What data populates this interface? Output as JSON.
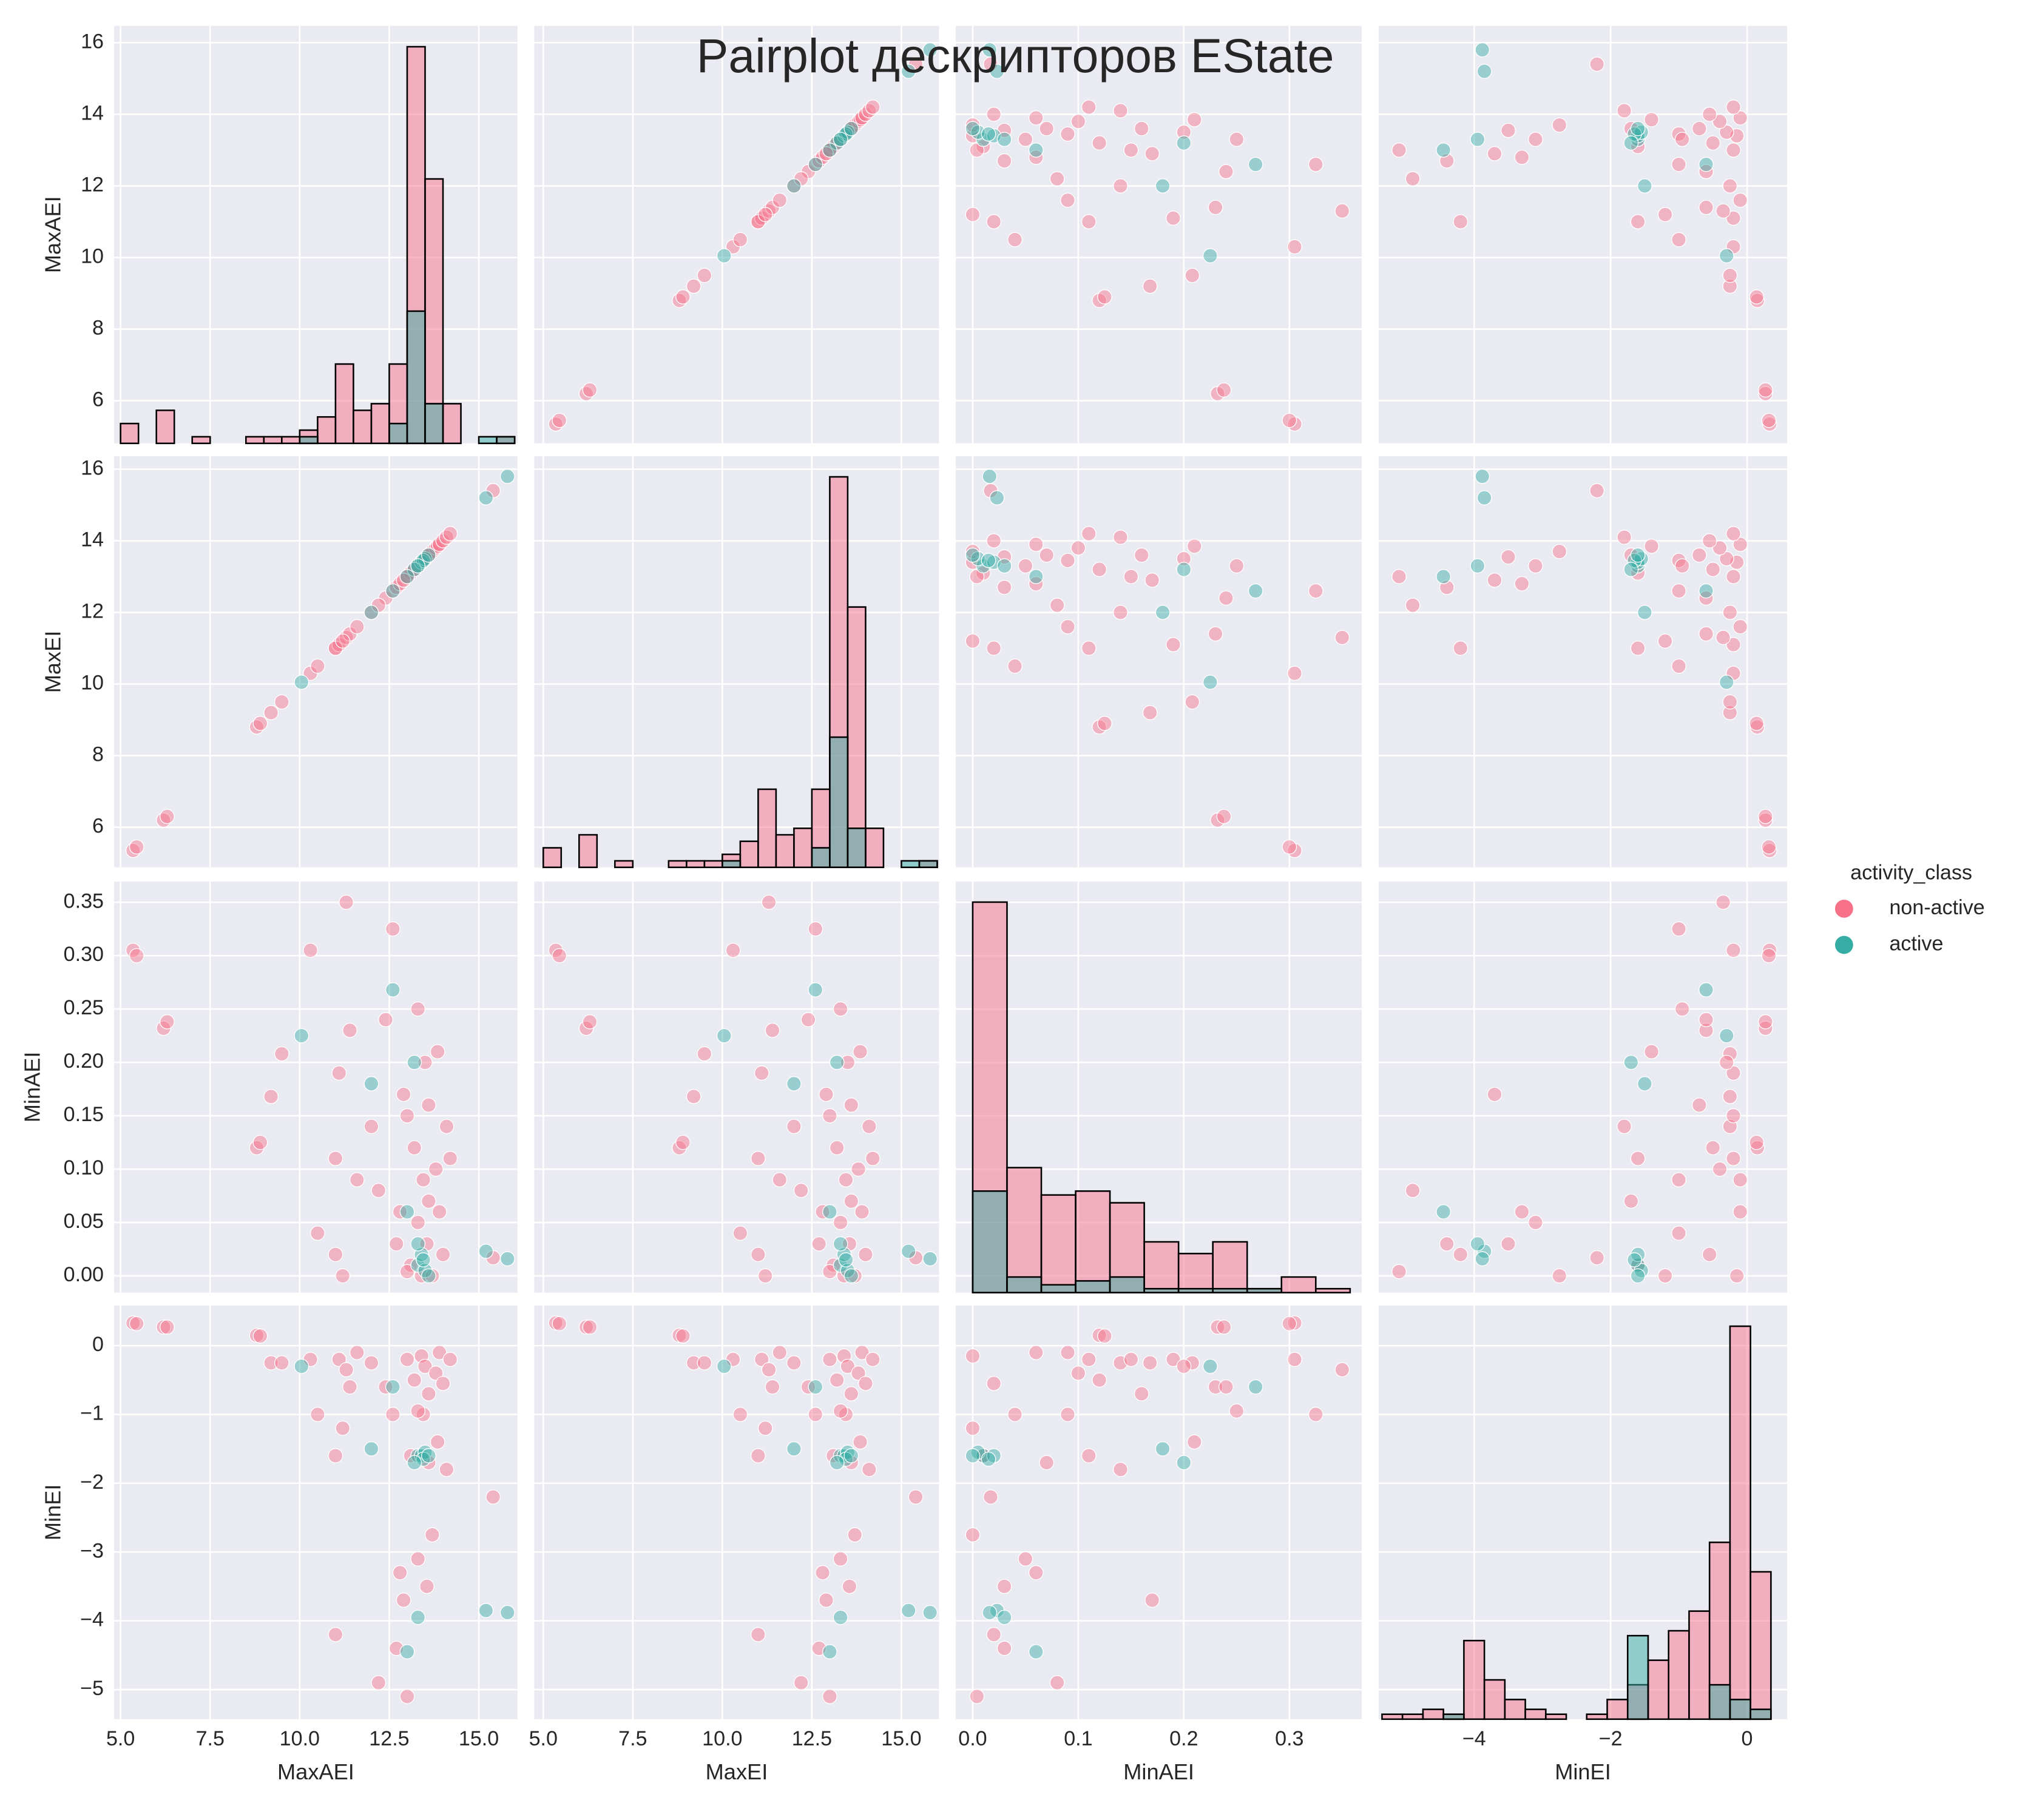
{
  "chart_data": {
    "type": "pairplot",
    "title": "Pairplot дескрипторов EState",
    "variables": [
      "MaxAEI",
      "MaxEI",
      "MinAEI",
      "MinEI"
    ],
    "grid": true,
    "legend_title": "activity_class",
    "legend_position": "right",
    "axes": [
      {
        "xlim": [
          4.82,
          16.08
        ],
        "ylim": [
          4.81,
          16.47
        ],
        "xticks": [
          {
            "value": 5,
            "label": "5.0"
          },
          7.5,
          {
            "value": 10,
            "label": "10.0"
          },
          12.5,
          {
            "value": 15,
            "label": "15.0"
          }
        ],
        "yticks": [
          6,
          8,
          10,
          12,
          14,
          16
        ]
      },
      {
        "xlim": [
          4.75,
          16.05
        ],
        "ylim": [
          4.88,
          16.36
        ],
        "xticks": [
          {
            "value": 5,
            "label": "5.0"
          },
          7.5,
          {
            "value": 10,
            "label": "10.0"
          },
          12.5,
          {
            "value": 15,
            "label": "15.0"
          }
        ],
        "yticks": [
          6,
          8,
          10,
          12,
          14,
          16
        ]
      },
      {
        "xlim": [
          -0.016,
          0.3686
        ],
        "ylim": [
          -0.0157,
          0.3694
        ],
        "xticks": [
          {
            "value": 0,
            "label": "0.0"
          },
          0.1,
          0.2,
          0.3
        ],
        "yticks": [
          {
            "value": 0,
            "label": "0.00"
          },
          0.05,
          {
            "value": 0.1,
            "label": "0.10"
          },
          0.15,
          {
            "value": 0.2,
            "label": "0.20"
          },
          0.25,
          {
            "value": 0.3,
            "label": "0.30"
          },
          0.35
        ]
      },
      {
        "xlim": [
          -5.4,
          0.588
        ],
        "ylim": [
          -5.43,
          0.583
        ],
        "xticks": [
          {
            "value": -4,
            "label": "−4"
          },
          {
            "value": -2,
            "label": "−2"
          },
          0
        ],
        "yticks": [
          {
            "value": -5,
            "label": "−5"
          },
          {
            "value": -4,
            "label": "−4"
          },
          {
            "value": -3,
            "label": "−3"
          },
          {
            "value": -2,
            "label": "−2"
          },
          {
            "value": -1,
            "label": "−1"
          },
          0
        ]
      }
    ],
    "series": [
      {
        "name": "non-active",
        "color": "#f77189",
        "values": [
          [
            5.35,
            5.35,
            0.305,
            0.33
          ],
          [
            5.45,
            5.45,
            0.3,
            0.32
          ],
          [
            6.2,
            6.2,
            0.232,
            0.27
          ],
          [
            6.3,
            6.3,
            0.238,
            0.27
          ],
          [
            8.8,
            8.8,
            0.12,
            0.15
          ],
          [
            8.9,
            8.9,
            0.125,
            0.14
          ],
          [
            9.2,
            9.2,
            0.168,
            -0.25
          ],
          [
            9.5,
            9.5,
            0.208,
            -0.25
          ],
          [
            10.3,
            10.3,
            0.305,
            -0.2
          ],
          [
            10.5,
            10.5,
            0.04,
            -1.0
          ],
          [
            11.0,
            11.0,
            0.11,
            -1.6
          ],
          [
            11.1,
            11.1,
            0.19,
            -0.2
          ],
          [
            11.3,
            11.3,
            0.35,
            -0.35
          ],
          [
            11.4,
            11.4,
            0.23,
            -0.6
          ],
          [
            11.0,
            11.0,
            0.02,
            -4.2
          ],
          [
            11.6,
            11.6,
            0.09,
            -0.1
          ],
          [
            12.0,
            12.0,
            0.14,
            -0.25
          ],
          [
            12.4,
            12.4,
            0.24,
            -0.6
          ],
          [
            12.6,
            12.6,
            0.325,
            -1.0
          ],
          [
            12.7,
            12.7,
            0.03,
            -4.4
          ],
          [
            12.8,
            12.8,
            0.06,
            -3.3
          ],
          [
            13.0,
            13.0,
            0.15,
            -0.2
          ],
          [
            13.1,
            13.1,
            0.01,
            -1.6
          ],
          [
            13.2,
            13.2,
            0.12,
            -0.5
          ],
          [
            13.3,
            13.3,
            0.05,
            -3.1
          ],
          [
            13.4,
            13.4,
            0.0,
            -0.15
          ],
          [
            13.45,
            13.45,
            0.09,
            -1.0
          ],
          [
            13.5,
            13.5,
            0.2,
            -0.3
          ],
          [
            13.55,
            13.55,
            0.03,
            -3.5
          ],
          [
            13.6,
            13.6,
            0.16,
            -0.7
          ],
          [
            13.7,
            13.7,
            0.0,
            -2.75
          ],
          [
            13.8,
            13.8,
            0.1,
            -0.4
          ],
          [
            13.85,
            13.85,
            0.21,
            -1.4
          ],
          [
            13.9,
            13.9,
            0.06,
            -0.1
          ],
          [
            14.0,
            14.0,
            0.02,
            -0.55
          ],
          [
            14.1,
            14.1,
            0.14,
            -1.8
          ],
          [
            14.2,
            14.2,
            0.11,
            -0.2
          ],
          [
            13.0,
            13.0,
            0.004,
            -5.1
          ],
          [
            13.3,
            13.3,
            0.25,
            -0.95
          ],
          [
            12.9,
            12.9,
            0.17,
            -3.7
          ],
          [
            15.4,
            15.4,
            0.017,
            -2.2
          ],
          [
            13.6,
            13.6,
            0.07,
            -1.7
          ],
          [
            11.2,
            11.2,
            0.0,
            -1.2
          ],
          [
            12.2,
            12.2,
            0.08,
            -4.9
          ]
        ]
      },
      {
        "name": "active",
        "color": "#36ada4",
        "values": [
          [
            10.05,
            10.05,
            0.225,
            -0.3
          ],
          [
            12.6,
            12.6,
            0.268,
            -0.6
          ],
          [
            13.3,
            13.3,
            0.01,
            -1.6
          ],
          [
            13.4,
            13.4,
            0.02,
            -1.6
          ],
          [
            13.5,
            13.5,
            0.005,
            -1.55
          ],
          [
            13.45,
            13.45,
            0.015,
            -1.65
          ],
          [
            13.6,
            13.6,
            0.0,
            -1.6
          ],
          [
            13.2,
            13.2,
            0.2,
            -1.7
          ],
          [
            15.2,
            15.2,
            0.023,
            -3.85
          ],
          [
            15.8,
            15.8,
            0.016,
            -3.88
          ],
          [
            13.3,
            13.3,
            0.03,
            -3.95
          ],
          [
            12.0,
            12.0,
            0.18,
            -1.5
          ],
          [
            13.0,
            13.0,
            0.06,
            -4.45
          ]
        ]
      }
    ],
    "histograms": [
      {
        "bins": [
          5.0,
          5.5,
          6.0,
          6.5,
          7.0,
          7.5,
          8.0,
          8.5,
          9.0,
          9.5,
          10.0,
          10.5,
          11.0,
          11.5,
          12.0,
          12.5,
          13.0,
          13.5,
          14.0,
          14.5,
          15.0,
          15.5,
          16.0
        ],
        "counts": [
          [
            3,
            0,
            5,
            0,
            1,
            0,
            0,
            1,
            1,
            1,
            2,
            4,
            12,
            5,
            6,
            12,
            60,
            40,
            6,
            0,
            0,
            1
          ],
          [
            0,
            0,
            0,
            0,
            0,
            0,
            0,
            0,
            0,
            0,
            1,
            0,
            0,
            0,
            0,
            3,
            20,
            6,
            0,
            0,
            1,
            1
          ]
        ]
      },
      {
        "bins": [
          5.0,
          5.5,
          6.0,
          6.5,
          7.0,
          7.5,
          8.0,
          8.5,
          9.0,
          9.5,
          10.0,
          10.5,
          11.0,
          11.5,
          12.0,
          12.5,
          13.0,
          13.5,
          14.0,
          14.5,
          15.0,
          15.5,
          16.0
        ],
        "counts": [
          [
            3,
            0,
            5,
            0,
            1,
            0,
            0,
            1,
            1,
            1,
            2,
            4,
            12,
            5,
            6,
            12,
            60,
            40,
            6,
            0,
            0,
            1
          ],
          [
            0,
            0,
            0,
            0,
            0,
            0,
            0,
            0,
            0,
            0,
            1,
            0,
            0,
            0,
            0,
            3,
            20,
            6,
            0,
            0,
            1,
            1
          ]
        ]
      },
      {
        "bins": [
          0.0,
          0.0325,
          0.065,
          0.0975,
          0.13,
          0.1625,
          0.195,
          0.2275,
          0.26,
          0.2925,
          0.325,
          0.3575
        ],
        "counts": [
          [
            100,
            32,
            25,
            26,
            23,
            13,
            10,
            13,
            1,
            4,
            1
          ],
          [
            26,
            4,
            2,
            3,
            4,
            1,
            1,
            1,
            1,
            0,
            0
          ]
        ]
      },
      {
        "bins": [
          -5.35,
          -5.05,
          -4.75,
          -4.45,
          -4.15,
          -3.85,
          -3.55,
          -3.25,
          -2.95,
          -2.65,
          -2.35,
          -2.05,
          -1.75,
          -1.45,
          -1.15,
          -0.85,
          -0.55,
          -0.25,
          0.05,
          0.35
        ],
        "counts": [
          [
            1,
            1,
            2,
            1,
            16,
            8,
            4,
            2,
            1,
            0,
            1,
            4,
            7,
            12,
            18,
            22,
            36,
            80,
            30
          ],
          [
            0,
            0,
            0,
            1,
            0,
            0,
            0,
            0,
            0,
            0,
            0,
            0,
            17,
            0,
            0,
            0,
            7,
            4,
            2
          ]
        ]
      }
    ]
  }
}
